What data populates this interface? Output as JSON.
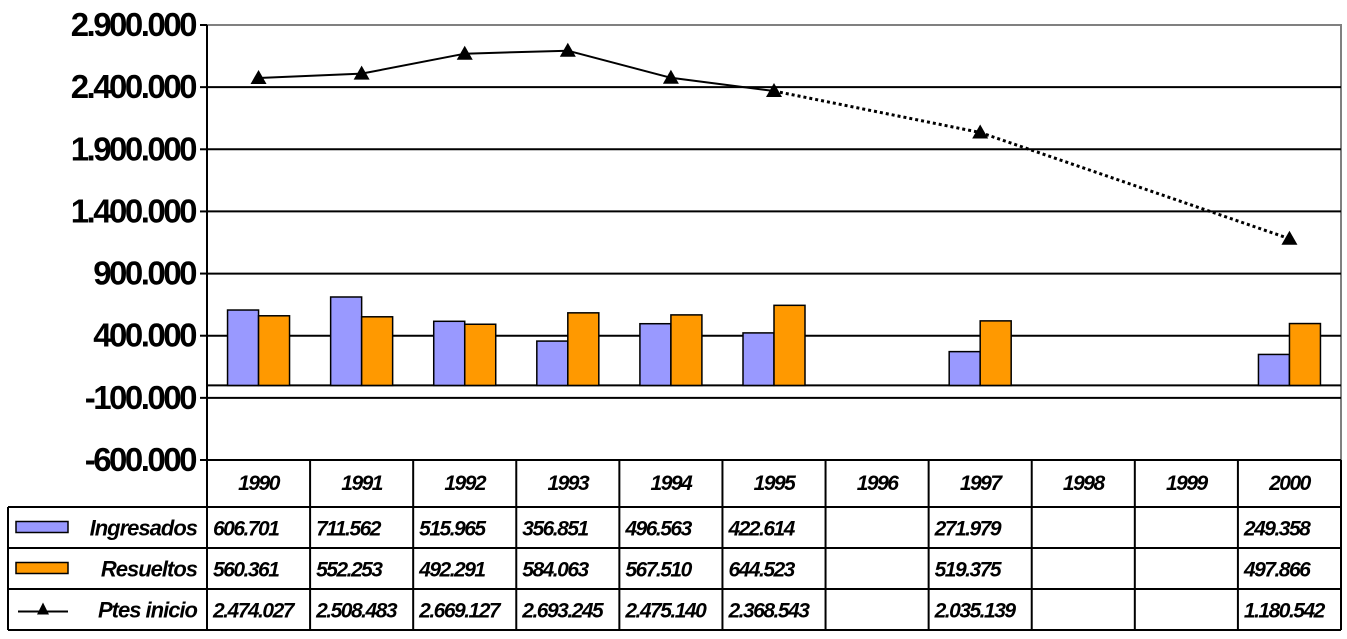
{
  "chart_data": {
    "type": "bar",
    "categories": [
      "1990",
      "1991",
      "1992",
      "1993",
      "1994",
      "1995",
      "1996",
      "1997",
      "1998",
      "1999",
      "2000"
    ],
    "series": [
      {
        "name": "Ingresados",
        "type": "bar",
        "color": "#9999FF",
        "values": [
          606701,
          711562,
          515965,
          356851,
          496563,
          422614,
          null,
          271979,
          null,
          null,
          249358
        ]
      },
      {
        "name": "Resueltos",
        "type": "bar",
        "color": "#FF9900",
        "values": [
          560361,
          552253,
          492291,
          584063,
          567510,
          644523,
          null,
          519375,
          null,
          null,
          497866
        ]
      },
      {
        "name": "Ptes inicio",
        "type": "line",
        "color": "#000000",
        "values": [
          2474027,
          2508483,
          2669127,
          2693245,
          2475140,
          2368543,
          null,
          2035139,
          null,
          null,
          1180542
        ]
      }
    ],
    "ylim": [
      -600000,
      2900000
    ],
    "yticks": [
      -600000,
      -100000,
      400000,
      900000,
      1400000,
      1900000,
      2400000,
      2900000
    ],
    "ytick_labels": [
      "-600.000",
      "-100.000",
      "400.000",
      "900.000",
      "1.400.000",
      "1.900.000",
      "2.400.000",
      "2.900.000"
    ],
    "grid": true,
    "legend": "data-table",
    "data_table": {
      "rows": [
        {
          "label": "Ingresados",
          "cells": [
            "606.701",
            "711.562",
            "515.965",
            "356.851",
            "496.563",
            "422.614",
            "",
            "271.979",
            "",
            "",
            "249.358"
          ]
        },
        {
          "label": "Resueltos",
          "cells": [
            "560.361",
            "552.253",
            "492.291",
            "584.063",
            "567.510",
            "644.523",
            "",
            "519.375",
            "",
            "",
            "497.866"
          ]
        },
        {
          "label": "Ptes inicio",
          "cells": [
            "2.474.027",
            "2.508.483",
            "2.669.127",
            "2.693.245",
            "2.475.140",
            "2.368.543",
            "",
            "2.035.139",
            "",
            "",
            "1.180.542"
          ]
        }
      ]
    }
  }
}
